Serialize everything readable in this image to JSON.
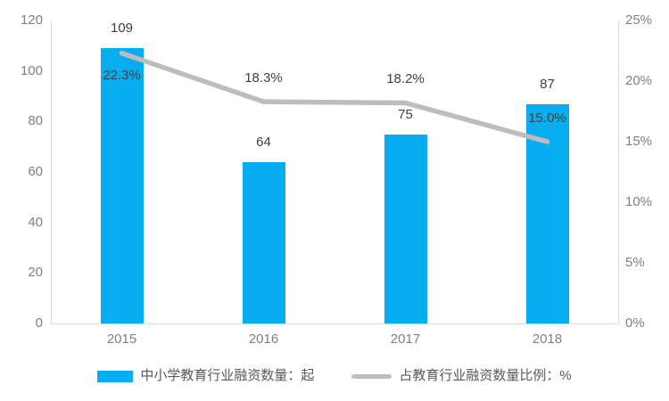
{
  "chart_data": {
    "type": "combo-bar-line",
    "title": "",
    "categories": [
      "2015",
      "2016",
      "2017",
      "2018"
    ],
    "series": [
      {
        "name": "中小学教育行业融资数量：起",
        "type": "bar",
        "axis": "left",
        "values": [
          109,
          64,
          75,
          87
        ],
        "data_labels": [
          "109",
          "64",
          "75",
          "87"
        ],
        "color": "#06ADEF"
      },
      {
        "name": "占教育行业融资数量比例：%",
        "type": "line",
        "axis": "right",
        "values": [
          22.3,
          18.3,
          18.2,
          15.0
        ],
        "data_labels": [
          "22.3%",
          "18.3%",
          "18.2%",
          "15.0%"
        ],
        "label_positions": [
          "below",
          "above",
          "above",
          "above"
        ],
        "color": "#BDBDBD"
      }
    ],
    "left_axis": {
      "min": 0,
      "max": 120,
      "step": 20,
      "ticks": [
        "0",
        "20",
        "40",
        "60",
        "80",
        "100",
        "120"
      ]
    },
    "right_axis": {
      "min": 0,
      "max": 25,
      "step": 5,
      "ticks": [
        "0%",
        "5%",
        "10%",
        "15%",
        "20%",
        "25%"
      ]
    },
    "grid": false,
    "legend_position": "bottom"
  },
  "style": {
    "axis_line_color": "#D9D9D9",
    "tick_label_color": "#808080",
    "data_label_color": "#404040",
    "legend_text_color": "#595959",
    "background_color": "#FFFFFF"
  }
}
